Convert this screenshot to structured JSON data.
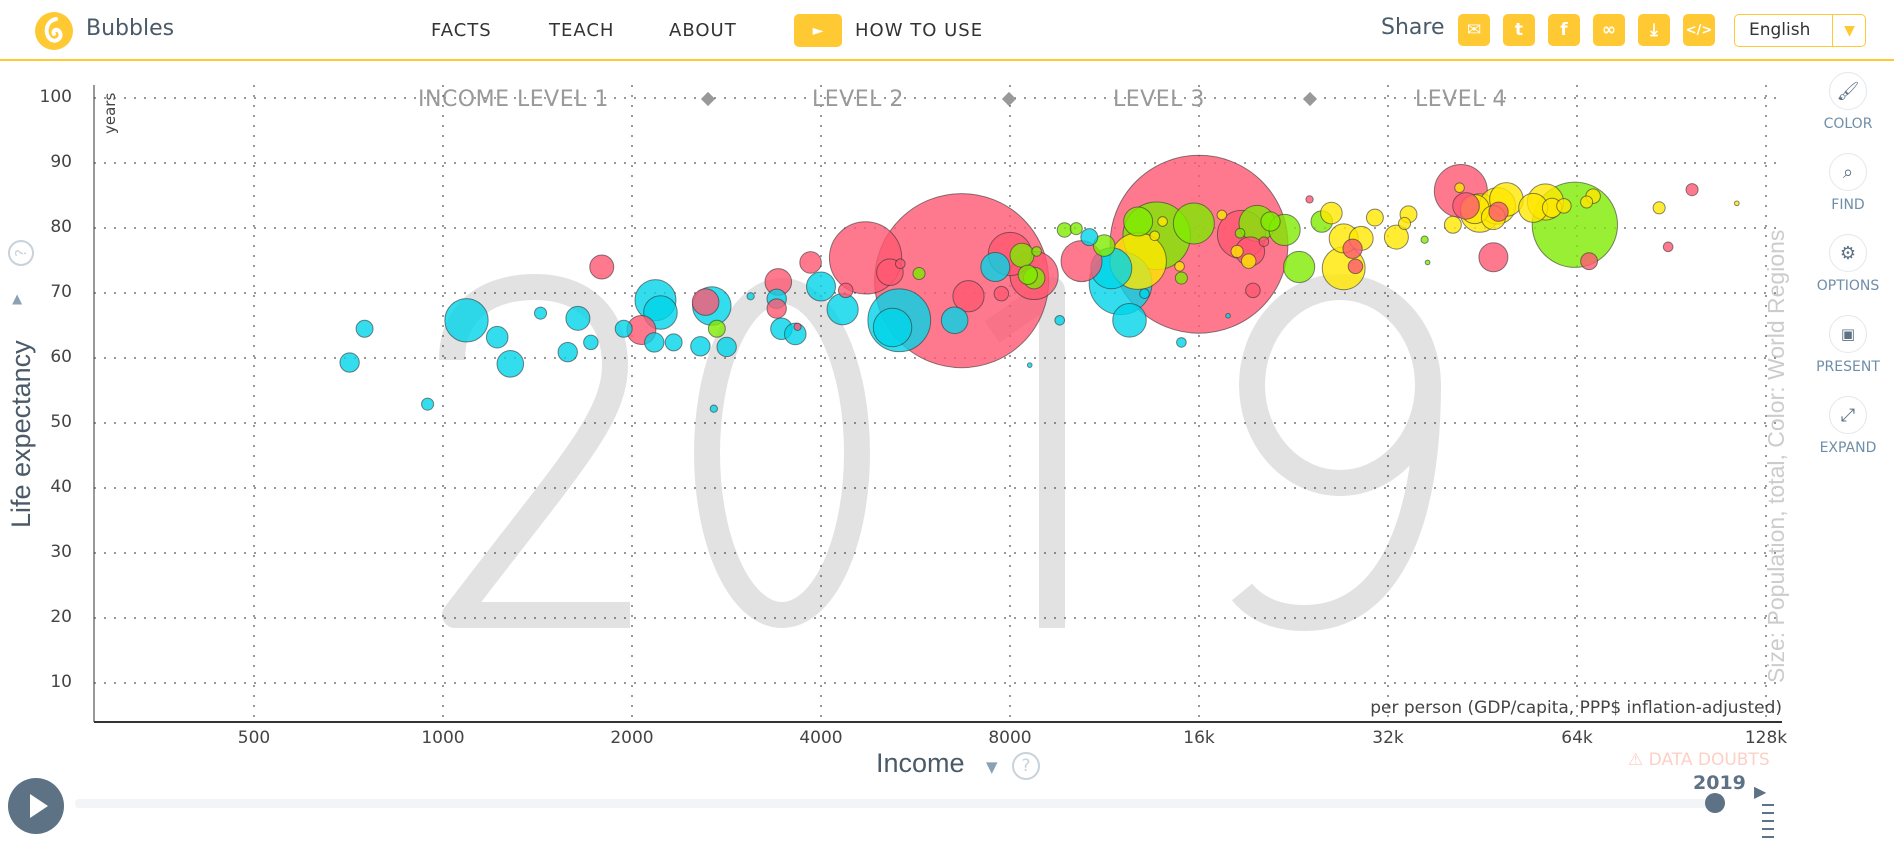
{
  "header": {
    "app_name": "Bubbles",
    "nav": [
      "FACTS",
      "TEACH",
      "ABOUT"
    ],
    "how_to_use": "HOW TO USE",
    "share_label": "Share",
    "share_icons": [
      "mail-icon",
      "twitter-icon",
      "facebook-icon",
      "link-icon",
      "download-icon",
      "embed-icon"
    ],
    "language": "English",
    "accent": "#ffc933"
  },
  "sidebar": [
    {
      "label": "COLOR",
      "icon": "brush-icon"
    },
    {
      "label": "FIND",
      "icon": "search-icon"
    },
    {
      "label": "OPTIONS",
      "icon": "gear-icon"
    },
    {
      "label": "PRESENT",
      "icon": "presentation-icon"
    },
    {
      "label": "EXPAND",
      "icon": "expand-icon"
    }
  ],
  "chart_data": {
    "type": "scatter",
    "year": "2019",
    "ylabel": "Life expectancy",
    "yunit": "years",
    "xlabel": "Income",
    "xsublabel": "per person (GDP/capita, PPP$ inflation-adjusted)",
    "size_color_label": "Size: Population, total, Color: World Regions",
    "x_scale": "log2",
    "xlim": [
      350,
      140000
    ],
    "ylim": [
      5,
      102
    ],
    "x_ticks": [
      500,
      1000,
      2000,
      4000,
      8000,
      16000,
      32000,
      64000,
      128000
    ],
    "x_tick_labels": [
      "500",
      "1000",
      "2000",
      "4000",
      "8000",
      "16k",
      "32k",
      "64k",
      "128k"
    ],
    "y_ticks": [
      10,
      20,
      30,
      40,
      50,
      60,
      70,
      80,
      90,
      100
    ],
    "y_tick_labels": [
      "10",
      "20",
      "30",
      "40",
      "50",
      "60",
      "70",
      "80",
      "90",
      "100"
    ],
    "grid": true,
    "income_levels": [
      "INCOME LEVEL 1",
      "LEVEL 2",
      "LEVEL 3",
      "LEVEL 4"
    ],
    "income_level_boundaries": [
      2700,
      7900,
      21000
    ],
    "point_format": [
      "income",
      "life_expectancy",
      "population_millions"
    ],
    "series": [
      {
        "region": "africa",
        "color": "#00d5e9",
        "points": [
          [
            710,
            59.3,
            17
          ],
          [
            750,
            64.5,
            13
          ],
          [
            945,
            52.9,
            6.6
          ],
          [
            1090,
            65.8,
            85
          ],
          [
            1220,
            63.2,
            21
          ],
          [
            1280,
            59.1,
            32
          ],
          [
            1430,
            66.9,
            6.6
          ],
          [
            1580,
            60.9,
            17
          ],
          [
            1640,
            66.1,
            26
          ],
          [
            1720,
            62.4,
            9.5
          ],
          [
            1940,
            64.5,
            13
          ],
          [
            2180,
            68.9,
            76
          ],
          [
            2220,
            67.0,
            51
          ],
          [
            2170,
            62.4,
            17
          ],
          [
            2330,
            62.4,
            13
          ],
          [
            2570,
            61.8,
            17
          ],
          [
            2680,
            68.0,
            67
          ],
          [
            2830,
            61.7,
            17
          ],
          [
            2700,
            52.2,
            2.4
          ],
          [
            3090,
            69.5,
            2.4
          ],
          [
            3400,
            69.1,
            17
          ],
          [
            3460,
            64.5,
            21
          ],
          [
            3640,
            63.7,
            21
          ],
          [
            4000,
            71.0,
            38
          ],
          [
            4330,
            67.5,
            44
          ],
          [
            5330,
            65.8,
            178
          ],
          [
            5200,
            64.7,
            67
          ],
          [
            6530,
            65.8,
            32
          ],
          [
            7580,
            74.0,
            38
          ],
          [
            11600,
            73.8,
            76
          ],
          [
            12000,
            71.5,
            178
          ],
          [
            12400,
            65.8,
            51
          ],
          [
            10700,
            78.6,
            13
          ],
          [
            8600,
            58.9,
            1
          ],
          [
            9600,
            65.8,
            4.2
          ],
          [
            15000,
            62.4,
            4.2
          ],
          [
            17800,
            66.5,
            1
          ],
          [
            13100,
            69.9,
            4.2
          ]
        ]
      },
      {
        "region": "asia",
        "color": "#ff5872",
        "points": [
          [
            1790,
            74.0,
            26
          ],
          [
            2070,
            64.3,
            38
          ],
          [
            2620,
            68.6,
            32
          ],
          [
            3420,
            71.7,
            32
          ],
          [
            3850,
            74.7,
            21
          ],
          [
            3400,
            67.6,
            17
          ],
          [
            3670,
            64.8,
            2.4
          ],
          [
            4380,
            70.4,
            9.5
          ],
          [
            4710,
            75.4,
            236
          ],
          [
            5150,
            73.2,
            32
          ],
          [
            5350,
            74.5,
            4.2
          ],
          [
            6700,
            71.9,
            1370
          ],
          [
            6870,
            69.5,
            44
          ],
          [
            7750,
            69.9,
            9.5
          ],
          [
            8000,
            76.0,
            85
          ],
          [
            8740,
            72.7,
            105
          ],
          [
            10400,
            74.9,
            76
          ],
          [
            16000,
            77.5,
            1430
          ],
          [
            18700,
            79.0,
            105
          ],
          [
            19300,
            76.4,
            38
          ],
          [
            19500,
            70.4,
            9.5
          ],
          [
            24000,
            84.4,
            2.4
          ],
          [
            41800,
            85.7,
            127
          ],
          [
            47100,
            75.5,
            38
          ],
          [
            42600,
            83.4,
            32
          ],
          [
            48000,
            82.5,
            16.8
          ],
          [
            97600,
            85.9,
            6.6
          ],
          [
            89400,
            77.1,
            4.2
          ],
          [
            66900,
            74.9,
            12.9
          ],
          [
            28100,
            76.8,
            16.8
          ],
          [
            28400,
            74.1,
            9.5
          ],
          [
            20300,
            77.9,
            4.2
          ]
        ]
      },
      {
        "region": "americas",
        "color": "#7feb00",
        "points": [
          [
            2730,
            64.5,
            12.9
          ],
          [
            5730,
            73.0,
            6.6
          ],
          [
            8360,
            75.8,
            26
          ],
          [
            8820,
            76.4,
            4.2
          ],
          [
            8540,
            72.8,
            16.8
          ],
          [
            8740,
            72.3,
            21
          ],
          [
            9770,
            79.7,
            9.5
          ],
          [
            10200,
            79.9,
            6.6
          ],
          [
            11300,
            77.3,
            21
          ],
          [
            12800,
            81.0,
            38
          ],
          [
            13700,
            78.8,
            206
          ],
          [
            15700,
            80.7,
            76
          ],
          [
            15000,
            72.3,
            6.6
          ],
          [
            19800,
            80.7,
            59
          ],
          [
            20800,
            81.0,
            16.8
          ],
          [
            21900,
            79.7,
            44
          ],
          [
            23100,
            74.0,
            44
          ],
          [
            25100,
            81.0,
            21
          ],
          [
            63500,
            80.5,
            329
          ],
          [
            36600,
            78.2,
            2.4
          ],
          [
            37000,
            74.7,
            1
          ],
          [
            18600,
            79.2,
            4.2
          ]
        ]
      },
      {
        "region": "europe",
        "color": "#ffe700",
        "points": [
          [
            12800,
            74.9,
            144
          ],
          [
            14000,
            81.0,
            4.2
          ],
          [
            13600,
            78.8,
            4.2
          ],
          [
            14900,
            74.1,
            4.2
          ],
          [
            17400,
            82.0,
            4.2
          ],
          [
            18400,
            76.4,
            6.6
          ],
          [
            19200,
            74.9,
            9.5
          ],
          [
            26000,
            82.3,
            21
          ],
          [
            27200,
            73.8,
            83
          ],
          [
            27200,
            78.4,
            38
          ],
          [
            29000,
            78.4,
            26
          ],
          [
            30500,
            81.6,
            12.9
          ],
          [
            33000,
            78.6,
            26
          ],
          [
            34000,
            80.7,
            6.6
          ],
          [
            34500,
            82.1,
            12.9
          ],
          [
            40600,
            80.5,
            12.9
          ],
          [
            41600,
            86.2,
            4.2
          ],
          [
            44000,
            82.9,
            38
          ],
          [
            44800,
            82.3,
            67
          ],
          [
            47800,
            83.4,
            60
          ],
          [
            49400,
            84.4,
            51
          ],
          [
            54500,
            83.1,
            38
          ],
          [
            57000,
            84.0,
            59
          ],
          [
            58400,
            83.1,
            16.8
          ],
          [
            61000,
            83.4,
            9.5
          ],
          [
            66300,
            84.0,
            6.6
          ],
          [
            67900,
            84.9,
            9.5
          ],
          [
            86500,
            83.1,
            6.6
          ],
          [
            115000,
            83.8,
            1
          ],
          [
            47100,
            81.6,
            26
          ]
        ]
      }
    ]
  },
  "timeline": {
    "year": "2019",
    "progress": 1.0
  },
  "data_doubts": "DATA DOUBTS"
}
